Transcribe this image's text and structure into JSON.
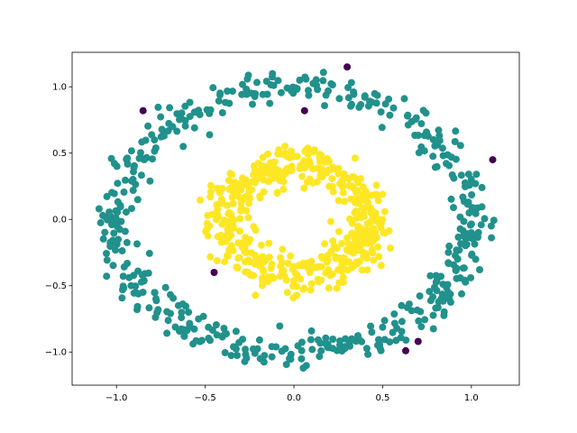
{
  "chart_data": {
    "type": "scatter",
    "title": "",
    "xlabel": "",
    "ylabel": "",
    "xlim": [
      -1.25,
      1.27
    ],
    "ylim": [
      -1.25,
      1.26
    ],
    "grid": false,
    "x_ticks": [
      -1.0,
      -0.5,
      0.0,
      0.5,
      1.0
    ],
    "x_tick_labels": [
      "−1.0",
      "−0.5",
      "0.0",
      "0.5",
      "1.0"
    ],
    "y_ticks": [
      -1.0,
      -0.5,
      0.0,
      0.5,
      1.0
    ],
    "y_tick_labels": [
      "−1.0",
      "−0.5",
      "0.0",
      "0.5",
      "1.0"
    ],
    "colors": {
      "outer_ring": "#21918c",
      "inner_ring": "#fde725",
      "noise": "#440154"
    },
    "outer_ring": {
      "shape": "ring",
      "center": [
        0.0,
        0.0
      ],
      "radius_x": 1.0,
      "radius_y": 1.0,
      "spread": 0.06,
      "count": 500,
      "color": "#21918c"
    },
    "inner_ring": {
      "shape": "ring",
      "center": [
        0.02,
        0.0
      ],
      "radius_x": 0.4,
      "radius_y": 0.4,
      "spread": 0.07,
      "count": 500,
      "color": "#fde725"
    },
    "noise_points": {
      "color": "#440154",
      "points": [
        [
          -0.85,
          0.82
        ],
        [
          0.3,
          1.15
        ],
        [
          0.06,
          0.82
        ],
        [
          1.12,
          0.45
        ],
        [
          -0.45,
          -0.4
        ],
        [
          0.7,
          -0.92
        ],
        [
          0.63,
          -0.99
        ]
      ]
    }
  }
}
